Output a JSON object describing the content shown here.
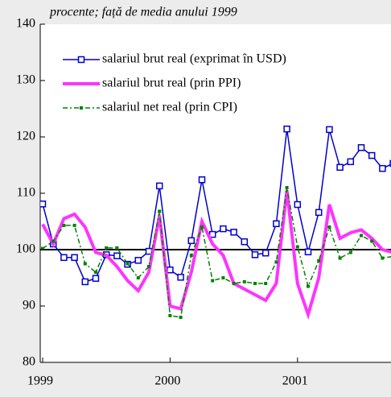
{
  "chart_data": {
    "type": "line",
    "subtitle": "procente; față de media anului 1999",
    "categories": [
      "1999",
      null,
      null,
      null,
      null,
      null,
      null,
      null,
      null,
      null,
      null,
      null,
      "2000",
      null,
      null,
      null,
      null,
      null,
      null,
      null,
      null,
      null,
      null,
      null,
      "2001",
      null,
      null,
      null,
      null,
      null,
      null,
      null,
      null,
      null
    ],
    "series": [
      {
        "name": "salariul brut real (exprimat în USD)",
        "color": "#0000cc",
        "marker": "open-square",
        "values": [
          108.1,
          101,
          98.6,
          98.6,
          94.3,
          94.9,
          99.1,
          98.9,
          97.4,
          98.1,
          99.7,
          111.3,
          96.4,
          95.1,
          101.6,
          112.4,
          102.7,
          103.7,
          103.1,
          101.4,
          99.1,
          99.4,
          104.6,
          121.4,
          108,
          99.6,
          106.6,
          121.3,
          114.6,
          115.6,
          118.1,
          116.7,
          114.4,
          115.3
        ]
      },
      {
        "name": "salariul brut real (prin PPI)",
        "color": "#ff33ff",
        "marker": "none",
        "values": [
          104.5,
          101,
          105.5,
          106.3,
          104,
          99.5,
          99,
          97,
          94.5,
          92.7,
          96,
          106,
          90,
          89.5,
          96,
          105,
          101,
          99,
          94,
          93,
          92,
          91,
          94,
          110.5,
          94,
          88.5,
          95,
          108,
          102,
          103,
          103.5,
          102,
          100,
          99.5
        ]
      },
      {
        "name": "salariul net real (prin CPI)",
        "color": "#008000",
        "marker": "filled-square",
        "values": [
          100.2,
          101.5,
          104.3,
          104.3,
          97.5,
          96,
          100.3,
          100.3,
          97.5,
          95,
          97,
          106.8,
          88.3,
          88,
          99,
          104,
          94.5,
          95,
          94,
          94.3,
          94,
          94,
          97.8,
          111,
          100.5,
          93.5,
          98,
          104,
          98.5,
          99.5,
          102.5,
          101.5,
          98.5,
          98.8
        ]
      }
    ],
    "ylim": [
      80,
      140
    ],
    "yticks": [
      80,
      90,
      100,
      110,
      120,
      130,
      140
    ],
    "reference_line": 100,
    "grid": false
  }
}
